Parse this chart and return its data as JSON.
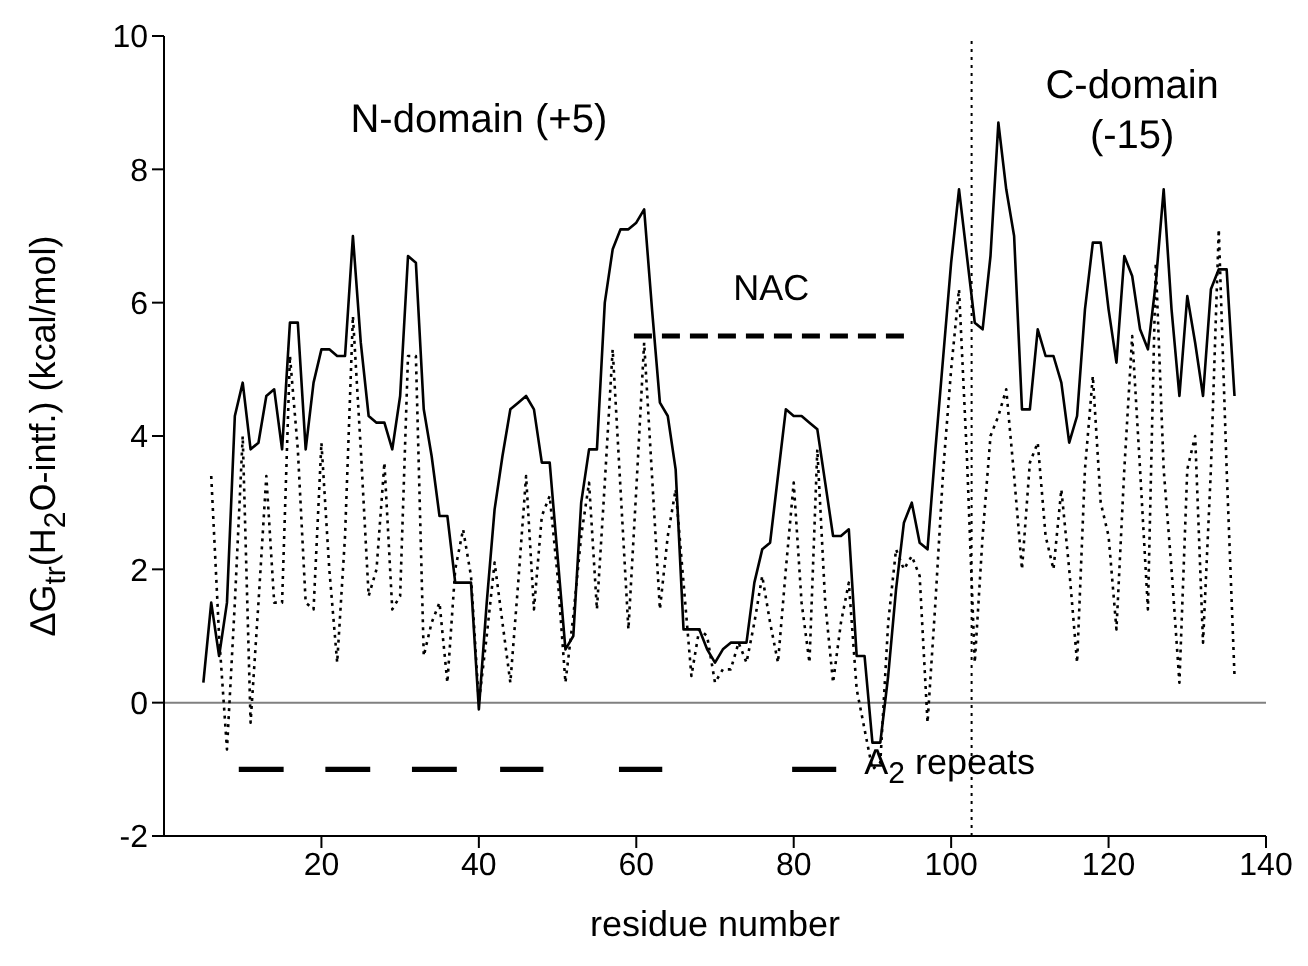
{
  "chart_data": {
    "type": "line",
    "xlabel": "residue number",
    "ylabel": "ΔG$_{tr}$(H$_{2}$O-intf.)  (kcal/mol)",
    "annotations": [
      "N-domain (+5)",
      "C-domain\n(-15)"
    ],
    "x": [
      5,
      6,
      7,
      8,
      9,
      10,
      11,
      12,
      13,
      14,
      15,
      16,
      17,
      18,
      19,
      20,
      21,
      22,
      23,
      24,
      25,
      26,
      27,
      28,
      29,
      30,
      31,
      32,
      33,
      34,
      35,
      36,
      37,
      38,
      39,
      40,
      41,
      42,
      43,
      44,
      45,
      46,
      47,
      48,
      49,
      50,
      51,
      52,
      53,
      54,
      55,
      56,
      57,
      58,
      59,
      60,
      61,
      62,
      63,
      64,
      65,
      66,
      67,
      68,
      69,
      70,
      71,
      72,
      73,
      74,
      75,
      76,
      77,
      78,
      79,
      80,
      81,
      82,
      83,
      84,
      85,
      86,
      87,
      88,
      89,
      90,
      91,
      92,
      93,
      94,
      95,
      96,
      97,
      98,
      99,
      100,
      101,
      102,
      103,
      104,
      105,
      106,
      107,
      108,
      109,
      110,
      111,
      112,
      113,
      114,
      115,
      116,
      117,
      118,
      119,
      120,
      121,
      122,
      123,
      124,
      125,
      126,
      127,
      128,
      129,
      130,
      131,
      132,
      133,
      134,
      135,
      136
    ],
    "series": [
      {
        "color": "#000000",
        "line_style": "solid",
        "values": [
          0.3,
          1.5,
          0.7,
          1.5,
          4.3,
          4.8,
          3.8,
          3.9,
          4.6,
          4.7,
          3.8,
          5.7,
          5.7,
          3.8,
          4.8,
          5.3,
          5.3,
          5.2,
          5.2,
          7.0,
          5.4,
          4.3,
          4.2,
          4.2,
          3.8,
          4.6,
          6.7,
          6.6,
          4.4,
          3.7,
          2.8,
          2.8,
          1.8,
          1.8,
          1.8,
          -0.1,
          1.5,
          2.9,
          3.7,
          4.4,
          4.5,
          4.6,
          4.4,
          3.6,
          3.6,
          2.2,
          0.8,
          1.0,
          3.0,
          3.8,
          3.8,
          6.0,
          6.8,
          7.1,
          7.1,
          7.2,
          7.4,
          5.9,
          4.5,
          4.3,
          3.5,
          1.1,
          1.1,
          1.1,
          0.8,
          0.6,
          0.8,
          0.9,
          0.9,
          0.9,
          1.8,
          2.3,
          2.4,
          3.4,
          4.4,
          4.3,
          4.3,
          4.2,
          4.1,
          3.3,
          2.5,
          2.5,
          2.6,
          0.7,
          0.7,
          -0.6,
          -0.6,
          0.4,
          1.7,
          2.7,
          3.0,
          2.4,
          2.3,
          3.8,
          5.2,
          6.6,
          7.7,
          6.7,
          5.7,
          5.6,
          6.7,
          8.7,
          7.7,
          7.0,
          4.4,
          4.4,
          5.6,
          5.2,
          5.2,
          4.8,
          3.9,
          4.3,
          5.9,
          6.9,
          6.9,
          5.9,
          5.1,
          6.7,
          6.4,
          5.6,
          5.3,
          6.3,
          7.7,
          5.9,
          4.6,
          6.1,
          5.4,
          4.6,
          6.2,
          6.5,
          6.5,
          4.6
        ]
      },
      {
        "color": "#000000",
        "line_style": "dotted",
        "values": [
          null,
          3.4,
          1.0,
          -0.7,
          1.5,
          4.0,
          -0.3,
          1.5,
          3.4,
          1.5,
          1.5,
          5.2,
          3.8,
          1.5,
          1.4,
          3.9,
          2.0,
          0.6,
          2.5,
          5.8,
          3.8,
          1.6,
          2.0,
          3.6,
          1.4,
          1.6,
          5.2,
          5.2,
          0.7,
          1.2,
          1.5,
          0.3,
          2.0,
          2.6,
          1.9,
          0.0,
          1.0,
          2.1,
          1.2,
          0.3,
          1.8,
          3.4,
          1.4,
          2.8,
          3.1,
          1.9,
          0.3,
          1.3,
          2.5,
          3.3,
          1.4,
          3.3,
          5.3,
          3.2,
          1.1,
          3.2,
          5.4,
          3.4,
          1.4,
          2.5,
          3.2,
          1.8,
          0.4,
          1.1,
          1.0,
          0.3,
          0.5,
          0.5,
          0.9,
          0.6,
          1.2,
          1.9,
          1.2,
          0.6,
          2.0,
          3.3,
          1.5,
          0.6,
          3.8,
          1.5,
          0.3,
          1.2,
          1.8,
          0.2,
          -0.4,
          -1.0,
          -0.9,
          1.2,
          2.3,
          2.0,
          2.2,
          1.9,
          -0.3,
          1.5,
          3.5,
          5.0,
          6.2,
          3.7,
          0.6,
          2.5,
          4.0,
          4.3,
          4.7,
          3.4,
          2.0,
          3.6,
          3.9,
          2.5,
          2.0,
          3.2,
          2.0,
          0.6,
          3.5,
          4.9,
          3.0,
          2.5,
          1.1,
          3.5,
          5.5,
          3.5,
          1.4,
          6.6,
          3.5,
          2.0,
          0.3,
          3.5,
          4.0,
          0.9,
          3.5,
          7.1,
          3.5,
          0.4
        ]
      },
      {
        "name": "NAC",
        "color": "#000000",
        "line_style": "dashed",
        "x": [
          59.7,
          94.6
        ],
        "values": [
          5.5,
          5.5
        ]
      },
      {
        "name": "A$_{2}$ repeats",
        "color": "#000000",
        "line_style": "solid",
        "x": [
          9.5,
          15.2,
          17.8,
          20.5,
          26.2,
          28.8,
          31.5,
          37.2,
          40,
          42.7,
          48.2,
          53,
          57.8,
          63.3,
          71.5,
          79.8,
          85.4
        ],
        "values": [
          -1,
          -1,
          null,
          -1,
          -1,
          null,
          -1,
          -1,
          null,
          -1,
          -1,
          null,
          -1,
          -1,
          null,
          -1,
          -1
        ]
      }
    ],
    "xlim": [
      0,
      140
    ],
    "xticks": [
      20,
      40,
      60,
      80,
      100,
      120,
      140
    ],
    "ylim": [
      -2,
      10
    ],
    "yticks": [
      -2,
      0,
      2,
      4,
      6,
      8,
      10
    ],
    "ref_lines": [
      {
        "axis": "y",
        "value": 0,
        "color": "#808080",
        "line_style": "solid"
      },
      {
        "axis": "x",
        "value": 102.6,
        "color": "#000000",
        "line_style": "dotted"
      }
    ]
  }
}
